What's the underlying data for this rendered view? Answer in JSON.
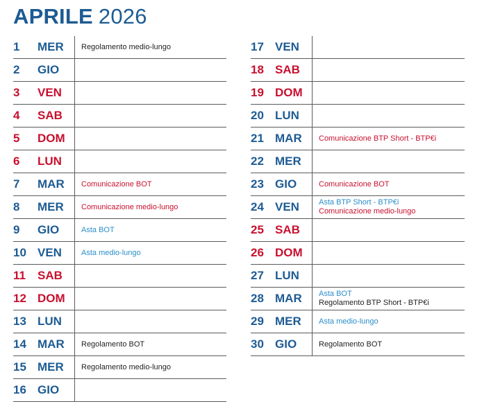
{
  "title": {
    "month": "APRILE",
    "year": "2026"
  },
  "colors": {
    "weekday": "#1d5b93",
    "weekend": "#c8102e",
    "event_settlement": "#222222",
    "event_communication": "#c8102e",
    "event_auction": "#2b8ec9"
  },
  "left_column": [
    {
      "day": "1",
      "weekday": "MER",
      "weekend": false,
      "events": [
        {
          "text": "Regolamento medio-lungo",
          "kind": "black"
        }
      ]
    },
    {
      "day": "2",
      "weekday": "GIO",
      "weekend": false,
      "events": []
    },
    {
      "day": "3",
      "weekday": "VEN",
      "weekend": true,
      "events": []
    },
    {
      "day": "4",
      "weekday": "SAB",
      "weekend": true,
      "events": []
    },
    {
      "day": "5",
      "weekday": "DOM",
      "weekend": true,
      "events": []
    },
    {
      "day": "6",
      "weekday": "LUN",
      "weekend": true,
      "events": []
    },
    {
      "day": "7",
      "weekday": "MAR",
      "weekend": false,
      "events": [
        {
          "text": "Comunicazione BOT",
          "kind": "red"
        }
      ]
    },
    {
      "day": "8",
      "weekday": "MER",
      "weekend": false,
      "events": [
        {
          "text": "Comunicazione medio-lungo",
          "kind": "red"
        }
      ]
    },
    {
      "day": "9",
      "weekday": "GIO",
      "weekend": false,
      "events": [
        {
          "text": "Asta BOT",
          "kind": "light"
        }
      ]
    },
    {
      "day": "10",
      "weekday": "VEN",
      "weekend": false,
      "events": [
        {
          "text": "Asta medio-lungo",
          "kind": "light"
        }
      ]
    },
    {
      "day": "11",
      "weekday": "SAB",
      "weekend": true,
      "events": []
    },
    {
      "day": "12",
      "weekday": "DOM",
      "weekend": true,
      "events": []
    },
    {
      "day": "13",
      "weekday": "LUN",
      "weekend": false,
      "events": []
    },
    {
      "day": "14",
      "weekday": "MAR",
      "weekend": false,
      "events": [
        {
          "text": "Regolamento BOT",
          "kind": "black"
        }
      ]
    },
    {
      "day": "15",
      "weekday": "MER",
      "weekend": false,
      "events": [
        {
          "text": "Regolamento medio-lungo",
          "kind": "black"
        }
      ]
    },
    {
      "day": "16",
      "weekday": "GIO",
      "weekend": false,
      "events": []
    }
  ],
  "right_column": [
    {
      "day": "17",
      "weekday": "VEN",
      "weekend": false,
      "events": []
    },
    {
      "day": "18",
      "weekday": "SAB",
      "weekend": true,
      "events": []
    },
    {
      "day": "19",
      "weekday": "DOM",
      "weekend": true,
      "events": []
    },
    {
      "day": "20",
      "weekday": "LUN",
      "weekend": false,
      "events": []
    },
    {
      "day": "21",
      "weekday": "MAR",
      "weekend": false,
      "events": [
        {
          "text": "Comunicazione BTP Short - BTP€i",
          "kind": "red"
        }
      ]
    },
    {
      "day": "22",
      "weekday": "MER",
      "weekend": false,
      "events": []
    },
    {
      "day": "23",
      "weekday": "GIO",
      "weekend": false,
      "events": [
        {
          "text": "Comunicazione BOT",
          "kind": "red"
        }
      ]
    },
    {
      "day": "24",
      "weekday": "VEN",
      "weekend": false,
      "events": [
        {
          "text": "Asta BTP Short - BTP€i",
          "kind": "light"
        },
        {
          "text": "Comunicazione medio-lungo",
          "kind": "red"
        }
      ]
    },
    {
      "day": "25",
      "weekday": "SAB",
      "weekend": true,
      "events": []
    },
    {
      "day": "26",
      "weekday": "DOM",
      "weekend": true,
      "events": []
    },
    {
      "day": "27",
      "weekday": "LUN",
      "weekend": false,
      "events": []
    },
    {
      "day": "28",
      "weekday": "MAR",
      "weekend": false,
      "events": [
        {
          "text": "Asta BOT",
          "kind": "light"
        },
        {
          "text": "Regolamento BTP Short - BTP€i",
          "kind": "black"
        }
      ]
    },
    {
      "day": "29",
      "weekday": "MER",
      "weekend": false,
      "events": [
        {
          "text": "Asta medio-lungo",
          "kind": "light"
        }
      ]
    },
    {
      "day": "30",
      "weekday": "GIO",
      "weekend": false,
      "events": [
        {
          "text": "Regolamento BOT",
          "kind": "black"
        }
      ]
    }
  ]
}
